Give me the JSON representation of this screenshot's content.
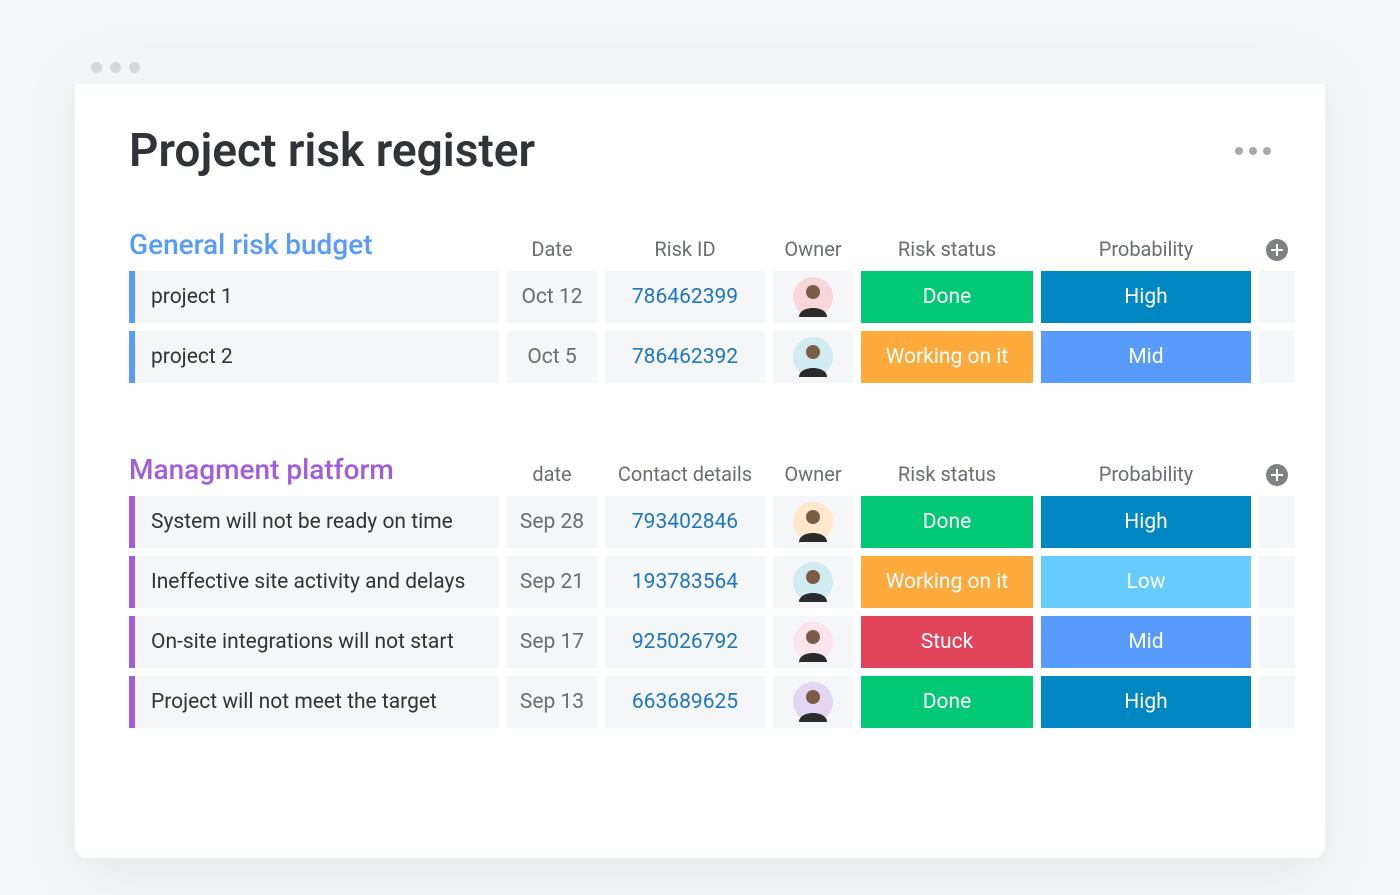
{
  "page": {
    "title": "Project risk register"
  },
  "colors": {
    "page_bg": "#f5f6f8",
    "window_bg": "#ffffff",
    "titlebar_bg": "#f3f4f6",
    "titlebar_dot": "#d7d7d7",
    "text_primary": "#323338",
    "text_muted": "#6b6d72",
    "link": "#1f76c2",
    "cell_bg": "#f5f6f8",
    "more_dot": "#a7a9ad",
    "add_btn_bg": "#7f8184"
  },
  "status_colors": {
    "Done": "#00c875",
    "Working on it": "#fdab3d",
    "Stuck": "#e2445c"
  },
  "probability_colors": {
    "High": "#0086c0",
    "Mid": "#579bfc",
    "Low": "#66ccff"
  },
  "avatar_palette": [
    "#f8d7da",
    "#d1ecf1",
    "#ffe8cc",
    "#e2d6f3",
    "#d4edda",
    "#fce4ec"
  ],
  "groups": [
    {
      "title": "General risk budget",
      "title_color": "#579bfc",
      "stripe_color": "#579bfc",
      "columns": [
        "Date",
        "Risk ID",
        "Owner",
        "Risk status",
        "Probability"
      ],
      "rows": [
        {
          "name": "project 1",
          "date": "Oct 12",
          "id": "786462399",
          "owner_avatar": 0,
          "status": "Done",
          "probability": "High"
        },
        {
          "name": "project 2",
          "date": "Oct 5",
          "id": "786462392",
          "owner_avatar": 1,
          "status": "Working on it",
          "probability": "Mid"
        }
      ]
    },
    {
      "title": "Managment platform",
      "title_color": "#a25ddc",
      "stripe_color": "#a25ddc",
      "columns": [
        "date",
        "Contact details",
        "Owner",
        "Risk status",
        "Probability"
      ],
      "rows": [
        {
          "name": "System will not be ready on time",
          "date": "Sep 28",
          "id": "793402846",
          "owner_avatar": 2,
          "status": "Done",
          "probability": "High"
        },
        {
          "name": "Ineffective site activity and delays",
          "date": "Sep 21",
          "id": "193783564",
          "owner_avatar": 1,
          "status": "Working on it",
          "probability": "Low"
        },
        {
          "name": "On-site integrations will not start",
          "date": "Sep 17",
          "id": "925026792",
          "owner_avatar": 5,
          "status": "Stuck",
          "probability": "Mid"
        },
        {
          "name": "Project will not meet the target",
          "date": "Sep 13",
          "id": "663689625",
          "owner_avatar": 3,
          "status": "Done",
          "probability": "High"
        }
      ]
    }
  ]
}
